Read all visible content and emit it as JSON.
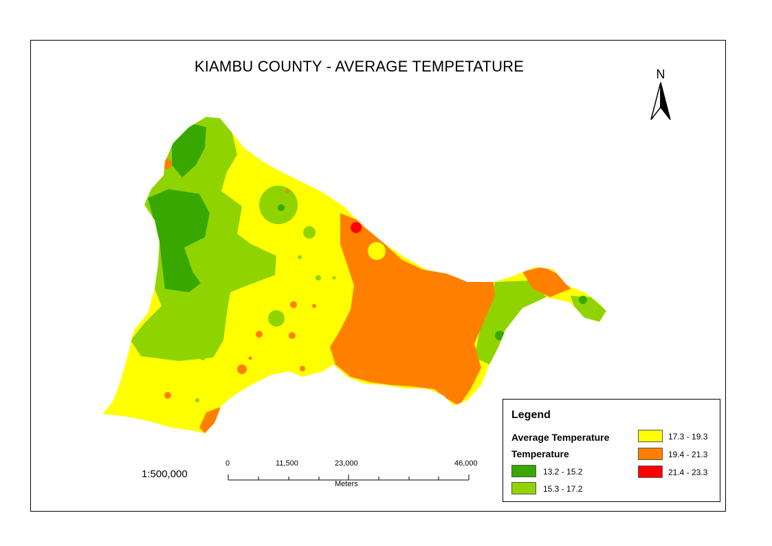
{
  "map": {
    "title": "KIAMBU COUNTY - AVERAGE TEMPETATURE",
    "north_label": "N",
    "scale_text": "1:500,000"
  },
  "scalebar": {
    "ticks": [
      "0",
      "11,500",
      "23,000",
      "46,000"
    ],
    "unit": "Meters"
  },
  "legend": {
    "title": "Legend",
    "heading": "Average Temperature",
    "subheading": "Temperature",
    "classes": [
      {
        "label": "13.2 - 15.2",
        "color": "#38a800"
      },
      {
        "label": "15.3 - 17.2",
        "color": "#8fd400"
      },
      {
        "label": "17.3 - 19.3",
        "color": "#ffff00"
      },
      {
        "label": "19.4 - 21.3",
        "color": "#ff8000"
      },
      {
        "label": "21.4 - 23.3",
        "color": "#ff0000"
      }
    ]
  }
}
